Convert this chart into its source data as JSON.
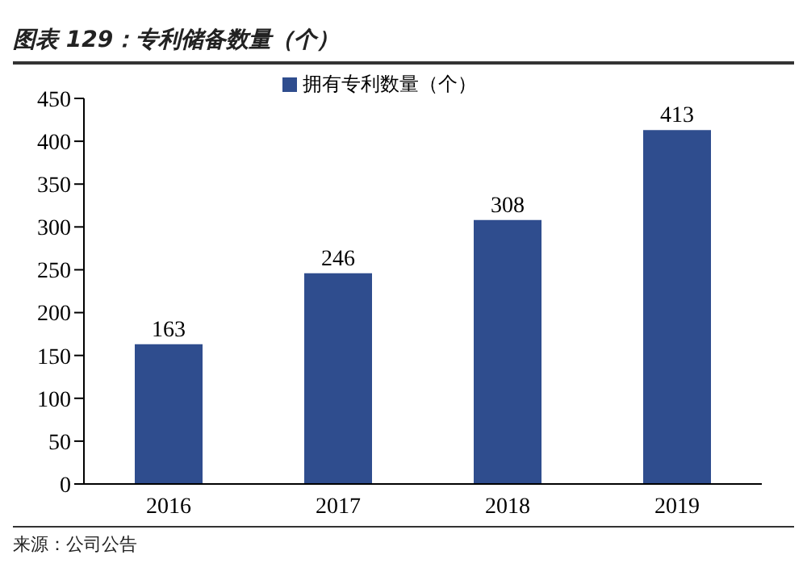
{
  "chart_data": {
    "type": "bar",
    "title": "图表 129：专利储备数量（个）",
    "categories": [
      "2016",
      "2017",
      "2018",
      "2019"
    ],
    "series": [
      {
        "name": "拥有专利数量（个）",
        "color": "#2f4d8e",
        "values": [
          163,
          246,
          308,
          413
        ]
      }
    ],
    "ylim": [
      0,
      450
    ],
    "yticks": [
      0,
      50,
      100,
      150,
      200,
      250,
      300,
      350,
      400,
      450
    ],
    "legend": "top",
    "data_labels": true,
    "annotations": [
      "来源：公司公告"
    ]
  }
}
